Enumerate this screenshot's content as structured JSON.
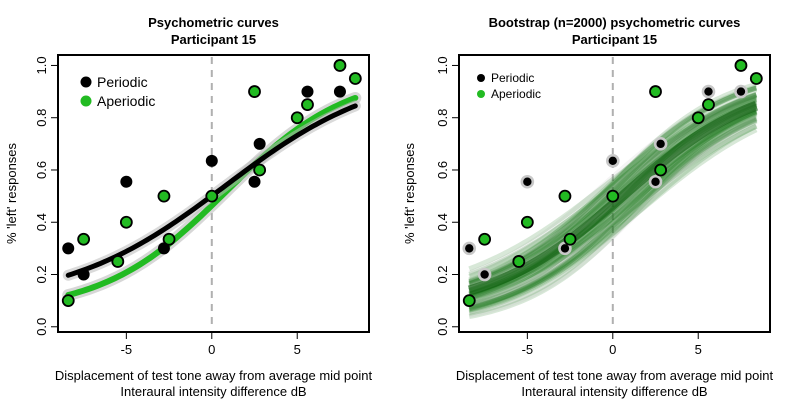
{
  "colors": {
    "periodic": "#000000",
    "aperiodic": "#22bb22",
    "aperiodic_edge": "#0a3a0a",
    "bootstrap_band": "#0b6e0b",
    "bootstrap_gray": "#bbbbbb",
    "dashed": "#b0b0b0"
  },
  "chart_data": [
    {
      "type": "scatter",
      "title": "Psychometric curves",
      "subtitle": "Participant 15",
      "xlabel": "Displacement of test tone away from average mid point",
      "xlabel2": "Interaural intensity difference dB",
      "ylabel": "% 'left' responses",
      "xlim": [
        -9,
        9.2
      ],
      "ylim": [
        -0.02,
        1.04
      ],
      "xticks": [
        -5,
        0,
        5
      ],
      "xtick_labels": [
        "-5",
        "0",
        "5"
      ],
      "yticks": [
        0,
        0.2,
        0.4,
        0.6,
        0.8,
        1
      ],
      "ytick_labels": [
        "0.0",
        "0.2",
        "0.4",
        "0.6",
        "0.8",
        "1.0"
      ],
      "vline_x": 0,
      "legend_position": "top-left",
      "series": [
        {
          "name": "Periodic",
          "points": [
            [
              -8.4,
              0.3
            ],
            [
              -7.5,
              0.2
            ],
            [
              -5,
              0.555
            ],
            [
              -2.8,
              0.3
            ],
            [
              0,
              0.635
            ],
            [
              2.5,
              0.555
            ],
            [
              2.8,
              0.7
            ],
            [
              5.6,
              0.9
            ],
            [
              7.5,
              0.9
            ]
          ],
          "fit": {
            "mid": 0.8,
            "scale": 4.6,
            "lo": 0.09,
            "hi": 0.99,
            "x_range": [
              -8.4,
              8.4
            ]
          }
        },
        {
          "name": "Aperiodic",
          "points": [
            [
              -8.4,
              0.1
            ],
            [
              -7.5,
              0.335
            ],
            [
              -5.5,
              0.25
            ],
            [
              -5,
              0.4
            ],
            [
              -2.8,
              0.5
            ],
            [
              -2.5,
              0.335
            ],
            [
              0,
              0.5
            ],
            [
              2.5,
              0.9
            ],
            [
              2.8,
              0.6
            ],
            [
              5,
              0.8
            ],
            [
              5.6,
              0.85
            ],
            [
              7.5,
              1.0
            ],
            [
              8.4,
              0.95
            ]
          ],
          "fit": {
            "mid": 0.8,
            "scale": 3.6,
            "lo": 0.055,
            "hi": 0.975,
            "x_range": [
              -8.4,
              8.4
            ]
          }
        }
      ]
    },
    {
      "type": "scatter",
      "title": "Bootstrap (n=2000) psychometric curves",
      "subtitle": "Participant 15",
      "xlabel": "Displacement of test tone away from average mid point",
      "xlabel2": "Interaural intensity difference dB",
      "ylabel": "% 'left' responses",
      "xlim": [
        -9,
        9.2
      ],
      "ylim": [
        -0.02,
        1.04
      ],
      "xticks": [
        -5,
        0,
        5
      ],
      "xtick_labels": [
        "-5",
        "0",
        "5"
      ],
      "yticks": [
        0,
        0.2,
        0.4,
        0.6,
        0.8,
        1
      ],
      "ytick_labels": [
        "0.0",
        "0.2",
        "0.4",
        "0.6",
        "0.8",
        "1.0"
      ],
      "vline_x": 0,
      "legend_position": "top-left",
      "series": [
        {
          "name": "Periodic",
          "points": [
            [
              -8.4,
              0.3
            ],
            [
              -7.5,
              0.2
            ],
            [
              -5,
              0.555
            ],
            [
              -2.8,
              0.3
            ],
            [
              0,
              0.635
            ],
            [
              2.5,
              0.555
            ],
            [
              2.8,
              0.7
            ],
            [
              5.6,
              0.9
            ],
            [
              7.5,
              0.9
            ]
          ]
        },
        {
          "name": "Aperiodic",
          "points": [
            [
              -8.4,
              0.1
            ],
            [
              -7.5,
              0.335
            ],
            [
              -5.5,
              0.25
            ],
            [
              -5,
              0.4
            ],
            [
              -2.8,
              0.5
            ],
            [
              -2.5,
              0.335
            ],
            [
              0,
              0.5
            ],
            [
              2.5,
              0.9
            ],
            [
              2.8,
              0.6
            ],
            [
              5,
              0.8
            ],
            [
              5.6,
              0.85
            ],
            [
              7.5,
              1.0
            ],
            [
              8.4,
              0.95
            ]
          ]
        }
      ],
      "bootstrap_band": {
        "x_range": [
          -8.4,
          8.4
        ],
        "n": 2000
      }
    }
  ]
}
